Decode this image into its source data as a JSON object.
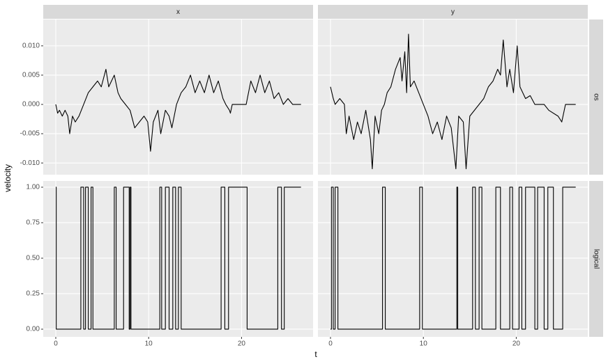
{
  "chart_data": {
    "type": "line",
    "xlabel": "t",
    "ylabel": "velocity",
    "columns": [
      "x",
      "y"
    ],
    "rows": [
      "os",
      "logical"
    ],
    "color": "#000000",
    "grid": true,
    "xlim": [
      -1.35,
      27.7
    ],
    "xticks": [
      0,
      10,
      20
    ],
    "row_ylims": [
      [
        -0.012,
        0.0145
      ],
      [
        -0.054,
        1.044
      ]
    ],
    "row_yticks": [
      [
        {
          "value": -0.01,
          "label": "-0.010"
        },
        {
          "value": -0.005,
          "label": "-0.005"
        },
        {
          "value": 0,
          "label": "0.000"
        },
        {
          "value": 0.005,
          "label": "0.005"
        },
        {
          "value": 0.01,
          "label": "0.010"
        }
      ],
      [
        {
          "value": 0,
          "label": "0.00"
        },
        {
          "value": 0.25,
          "label": "0.25"
        },
        {
          "value": 0.5,
          "label": "0.50"
        },
        {
          "value": 0.75,
          "label": "0.75"
        },
        {
          "value": 1,
          "label": "1.00"
        }
      ]
    ],
    "panels": [
      [
        {
          "x": [
            0,
            0.2,
            0.4,
            0.7,
            1.0,
            1.3,
            1.5,
            1.8,
            2.1,
            2.5,
            3.0,
            3.5,
            4.0,
            4.5,
            4.9,
            5.4,
            5.7,
            6.0,
            6.3,
            6.7,
            7.0,
            7.5,
            8.0,
            8.5,
            9.0,
            9.5,
            9.9,
            10.2,
            10.5,
            11.0,
            11.3,
            11.8,
            12.2,
            12.5,
            13.0,
            13.5,
            14.0,
            14.5,
            15.0,
            15.5,
            16.0,
            16.5,
            17.0,
            17.5,
            18.0,
            18.3,
            18.7,
            18.8,
            19.0,
            20.5,
            21.0,
            21.5,
            22.0,
            22.5,
            23.0,
            23.5,
            24.0,
            24.5,
            25.0,
            25.5,
            26.4
          ],
          "values": [
            0,
            -0.0015,
            -0.001,
            -0.002,
            -0.001,
            -0.002,
            -0.005,
            -0.002,
            -0.003,
            -0.002,
            0,
            0.002,
            0.003,
            0.004,
            0.003,
            0.006,
            0.003,
            0.004,
            0.005,
            0.002,
            0.001,
            0,
            -0.001,
            -0.004,
            -0.003,
            -0.002,
            -0.003,
            -0.008,
            -0.003,
            -0.001,
            -0.005,
            -0.001,
            -0.002,
            -0.004,
            0,
            0.002,
            0.003,
            0.005,
            0.002,
            0.004,
            0.002,
            0.005,
            0.002,
            0.004,
            0.001,
            0,
            -0.001,
            -0.0015,
            0,
            0,
            0.004,
            0.002,
            0.005,
            0.002,
            0.004,
            0.001,
            0.002,
            0,
            0.001,
            0,
            0
          ]
        },
        {
          "x": [
            0,
            0.3,
            0.5,
            1.0,
            1.5,
            1.7,
            2.0,
            2.5,
            2.9,
            3.3,
            3.8,
            4.3,
            4.5,
            4.8,
            5.2,
            5.5,
            5.8,
            6.1,
            6.5,
            7.0,
            7.5,
            7.7,
            8.0,
            8.2,
            8.4,
            8.6,
            9.0,
            9.5,
            10.0,
            10.5,
            11.0,
            11.5,
            12.0,
            12.5,
            13.0,
            13.5,
            13.8,
            14.3,
            14.6,
            15.0,
            16.0,
            16.5,
            17.0,
            17.5,
            18.0,
            18.3,
            18.6,
            19.0,
            19.3,
            19.7,
            20.1,
            20.4,
            21.0,
            21.5,
            22.0,
            23.0,
            23.5,
            24.5,
            24.9,
            25.3,
            26.4
          ],
          "values": [
            0.003,
            0.001,
            0,
            0.001,
            0,
            -0.005,
            -0.002,
            -0.006,
            -0.003,
            -0.005,
            -0.001,
            -0.006,
            -0.011,
            -0.002,
            -0.005,
            -0.001,
            0,
            0.002,
            0.003,
            0.006,
            0.008,
            0.004,
            0.009,
            0.002,
            0.012,
            0.003,
            0.004,
            0.002,
            0,
            -0.002,
            -0.005,
            -0.003,
            -0.006,
            -0.002,
            -0.004,
            -0.011,
            -0.002,
            -0.003,
            -0.011,
            -0.002,
            0,
            0.001,
            0.003,
            0.004,
            0.006,
            0.005,
            0.011,
            0.003,
            0.006,
            0.002,
            0.01,
            0.003,
            0.001,
            0.0015,
            0,
            0,
            -0.001,
            -0.002,
            -0.003,
            0,
            0
          ]
        }
      ],
      [
        {
          "x": [
            0,
            0.05,
            0.05,
            2.7,
            2.7,
            3.0,
            3.0,
            3.2,
            3.2,
            3.5,
            3.5,
            3.8,
            3.8,
            4.0,
            4.0,
            6.3,
            6.3,
            6.5,
            6.5,
            7.3,
            7.3,
            7.9,
            7.9,
            8.0,
            8.0,
            8.1,
            8.1,
            11.2,
            11.2,
            11.4,
            11.4,
            11.8,
            11.8,
            12.2,
            12.2,
            12.6,
            12.6,
            12.9,
            12.9,
            13.2,
            13.2,
            13.5,
            13.5,
            17.8,
            17.8,
            18.2,
            18.2,
            18.6,
            18.6,
            20.6,
            20.6,
            23.9,
            23.9,
            24.3,
            24.3,
            24.6,
            24.6,
            26.4
          ],
          "values": [
            1,
            1,
            0,
            0,
            1,
            1,
            0,
            0,
            1,
            1,
            0,
            0,
            1,
            1,
            0,
            0,
            1,
            1,
            0,
            0,
            1,
            1,
            0,
            0,
            1,
            1,
            0,
            0,
            1,
            1,
            0,
            0,
            1,
            1,
            0,
            0,
            1,
            1,
            0,
            0,
            1,
            1,
            0,
            0,
            1,
            1,
            0,
            0,
            1,
            1,
            0,
            0,
            1,
            1,
            0,
            0,
            1,
            1
          ]
        },
        {
          "x": [
            0,
            0.1,
            0.1,
            0.3,
            0.3,
            0.5,
            0.5,
            0.8,
            0.8,
            5.6,
            5.6,
            5.9,
            5.9,
            9.6,
            9.6,
            9.9,
            9.9,
            13.6,
            13.6,
            13.7,
            13.7,
            15.3,
            15.3,
            15.6,
            15.6,
            16.0,
            16.0,
            16.3,
            16.3,
            17.8,
            17.8,
            18.3,
            18.3,
            19.3,
            19.3,
            19.6,
            19.6,
            20.3,
            20.3,
            20.6,
            20.6,
            21.0,
            21.0,
            22.0,
            22.0,
            22.3,
            22.3,
            23.0,
            23.0,
            23.4,
            23.4,
            24.0,
            24.0,
            25.0,
            25.0,
            26.4
          ],
          "values": [
            0,
            0,
            1,
            1,
            0,
            0,
            1,
            1,
            0,
            0,
            1,
            1,
            0,
            0,
            1,
            1,
            0,
            0,
            1,
            1,
            0,
            0,
            1,
            1,
            0,
            0,
            1,
            1,
            0,
            0,
            1,
            1,
            0,
            0,
            1,
            1,
            0,
            0,
            1,
            1,
            0,
            0,
            1,
            1,
            0,
            0,
            1,
            1,
            0,
            0,
            1,
            1,
            0,
            0,
            1,
            1
          ]
        }
      ]
    ]
  }
}
